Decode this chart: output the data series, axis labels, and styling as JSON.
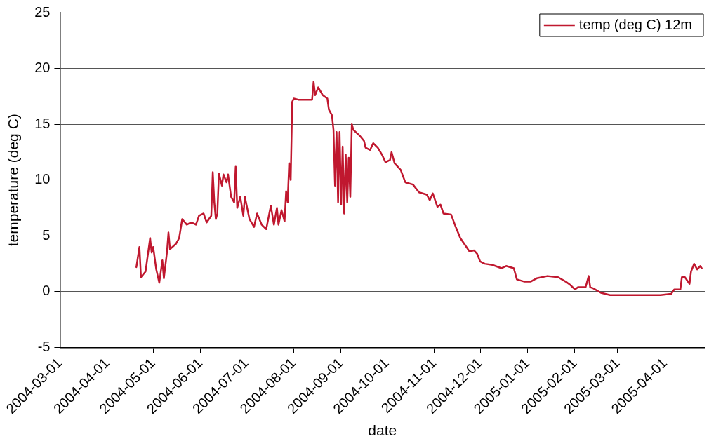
{
  "chart_data": {
    "type": "line",
    "xlabel": "date",
    "ylabel": "temperature (deg C)",
    "xlim": [
      "2004-03-01",
      "2005-04-27"
    ],
    "xticks": [
      "2004-03-01",
      "2004-04-01",
      "2004-05-01",
      "2004-06-01",
      "2004-07-01",
      "2004-08-01",
      "2004-09-01",
      "2004-10-01",
      "2004-11-01",
      "2004-12-01",
      "2005-01-01",
      "2005-02-01",
      "2005-03-01",
      "2005-04-01"
    ],
    "ylim": [
      -5,
      25
    ],
    "yticks": [
      -5,
      0,
      5,
      10,
      15,
      20,
      25
    ],
    "grid": "y",
    "legend": "top right",
    "marker": "none",
    "line_style": "solid",
    "series": [
      {
        "name": "temp (deg C) 12m",
        "color": "#c0182f",
        "x": [
          "2004-04-20",
          "2004-04-22",
          "2004-04-23",
          "2004-04-26",
          "2004-04-29",
          "2004-04-30",
          "2004-05-01",
          "2004-05-03",
          "2004-05-05",
          "2004-05-07",
          "2004-05-08",
          "2004-05-10",
          "2004-05-11",
          "2004-05-12",
          "2004-05-16",
          "2004-05-18",
          "2004-05-20",
          "2004-05-23",
          "2004-05-26",
          "2004-05-29",
          "2004-05-31",
          "2004-06-03",
          "2004-06-05",
          "2004-06-08",
          "2004-06-09",
          "2004-06-10",
          "2004-06-11",
          "2004-06-12",
          "2004-06-13",
          "2004-06-15",
          "2004-06-16",
          "2004-06-18",
          "2004-06-19",
          "2004-06-21",
          "2004-06-23",
          "2004-06-24",
          "2004-06-25",
          "2004-06-27",
          "2004-06-29",
          "2004-06-30",
          "2004-07-03",
          "2004-07-06",
          "2004-07-08",
          "2004-07-11",
          "2004-07-14",
          "2004-07-17",
          "2004-07-19",
          "2004-07-21",
          "2004-07-22",
          "2004-07-24",
          "2004-07-26",
          "2004-07-27",
          "2004-07-28",
          "2004-07-29",
          "2004-07-30",
          "2004-07-31",
          "2004-08-01",
          "2004-08-04",
          "2004-08-08",
          "2004-08-13",
          "2004-08-14",
          "2004-08-15",
          "2004-08-17",
          "2004-08-20",
          "2004-08-23",
          "2004-08-24",
          "2004-08-26",
          "2004-08-27",
          "2004-08-28",
          "2004-08-29",
          "2004-08-30",
          "2004-08-31",
          "2004-09-01",
          "2004-09-02",
          "2004-09-03",
          "2004-09-04",
          "2004-09-05",
          "2004-09-06",
          "2004-09-07",
          "2004-09-08",
          "2004-09-09",
          "2004-09-13",
          "2004-09-16",
          "2004-09-17",
          "2004-09-20",
          "2004-09-22",
          "2004-09-25",
          "2004-09-28",
          "2004-09-30",
          "2004-10-03",
          "2004-10-04",
          "2004-10-06",
          "2004-10-10",
          "2004-10-13",
          "2004-10-18",
          "2004-10-22",
          "2004-10-27",
          "2004-10-29",
          "2004-10-31",
          "2004-11-03",
          "2004-11-05",
          "2004-11-07",
          "2004-11-12",
          "2004-11-15",
          "2004-11-18",
          "2004-11-21",
          "2004-11-24",
          "2004-11-27",
          "2004-11-29",
          "2004-12-01",
          "2004-12-04",
          "2004-12-09",
          "2004-12-15",
          "2004-12-18",
          "2004-12-23",
          "2004-12-25",
          "2004-12-30",
          "2005-01-03",
          "2005-01-07",
          "2005-01-14",
          "2005-01-21",
          "2005-01-26",
          "2005-01-29",
          "2005-02-01",
          "2005-02-03",
          "2005-02-08",
          "2005-02-10",
          "2005-02-11",
          "2005-02-13",
          "2005-02-18",
          "2005-02-24",
          "2005-03-04",
          "2005-03-12",
          "2005-03-21",
          "2005-03-29",
          "2005-04-05",
          "2005-04-07",
          "2005-04-11",
          "2005-04-12",
          "2005-04-14",
          "2005-04-17",
          "2005-04-18",
          "2005-04-20",
          "2005-04-22",
          "2005-04-24",
          "2005-04-25"
        ],
        "values": [
          2.2,
          4.0,
          1.3,
          1.8,
          4.8,
          3.5,
          4.0,
          2.0,
          0.8,
          2.8,
          1.2,
          3.5,
          5.3,
          3.8,
          4.3,
          4.8,
          6.5,
          6.0,
          6.2,
          6.0,
          6.8,
          7.0,
          6.2,
          6.8,
          10.7,
          8.0,
          6.5,
          7.0,
          10.6,
          9.5,
          10.5,
          9.8,
          10.5,
          8.5,
          8.0,
          11.2,
          7.5,
          8.5,
          6.8,
          8.5,
          6.5,
          5.8,
          7.0,
          6.0,
          5.6,
          7.7,
          6.0,
          7.5,
          6.0,
          7.3,
          6.3,
          9.0,
          8.0,
          11.5,
          10.0,
          17.0,
          17.3,
          17.2,
          17.2,
          17.2,
          18.8,
          17.6,
          18.3,
          17.6,
          17.3,
          16.3,
          15.8,
          14.5,
          9.5,
          14.3,
          8.0,
          14.3,
          7.8,
          13.0,
          7.0,
          12.3,
          8.0,
          12.0,
          8.5,
          15.0,
          14.5,
          14.0,
          13.5,
          12.9,
          12.7,
          13.3,
          12.9,
          12.2,
          11.6,
          11.8,
          12.5,
          11.5,
          10.9,
          9.8,
          9.6,
          8.9,
          8.7,
          8.2,
          8.8,
          7.6,
          7.8,
          7.0,
          6.9,
          5.8,
          4.8,
          4.2,
          3.6,
          3.7,
          3.4,
          2.7,
          2.5,
          2.4,
          2.1,
          2.3,
          2.1,
          1.1,
          0.9,
          0.9,
          1.2,
          1.4,
          1.3,
          0.9,
          0.6,
          0.2,
          0.4,
          0.4,
          1.4,
          0.4,
          0.3,
          -0.1,
          -0.3,
          -0.3,
          -0.3,
          -0.3,
          -0.3,
          -0.2,
          0.2,
          0.2,
          1.3,
          1.3,
          0.7,
          1.8,
          2.5,
          2.0,
          2.3,
          2.1
        ]
      }
    ]
  }
}
